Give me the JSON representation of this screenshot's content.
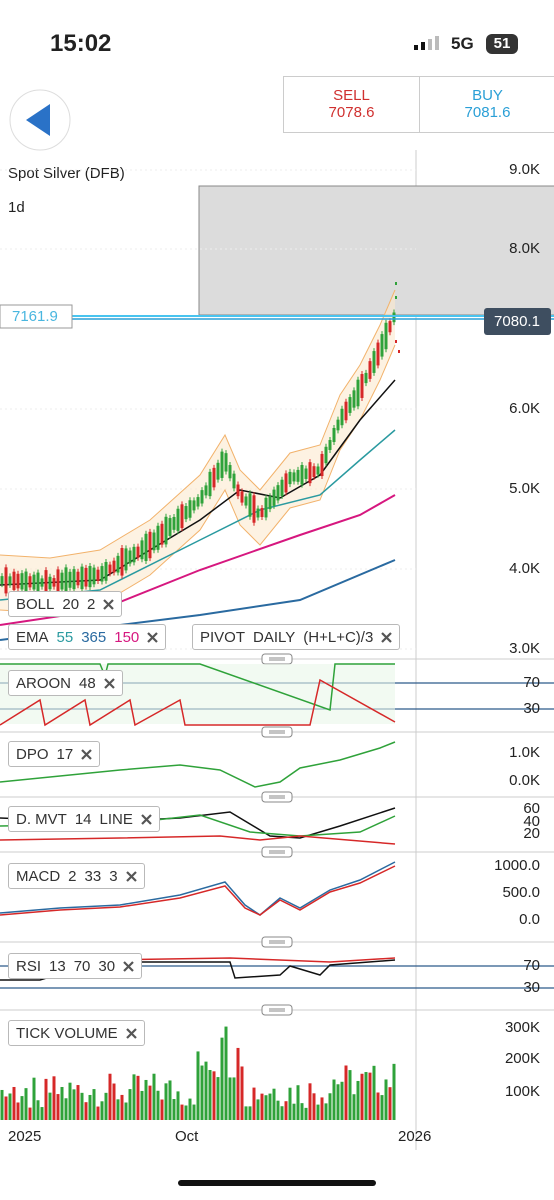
{
  "status_bar": {
    "time": "15:02",
    "network": "5G",
    "battery": "51"
  },
  "quote": {
    "sell_label": "SELL",
    "sell_price": "7078.6",
    "buy_label": "BUY",
    "buy_price": "7081.6"
  },
  "instrument": {
    "name": "Spot Silver (DFB)",
    "timeframe": "1d"
  },
  "price_axis": {
    "ticks": [
      "9.0K",
      "8.0K",
      "6.0K",
      "5.0K",
      "4.0K",
      "3.0K"
    ],
    "current_price": "7080.1",
    "line_label": "7161.9"
  },
  "indicators": [
    {
      "name": "BOLL",
      "params": [
        "20",
        "2"
      ]
    },
    {
      "name": "EMA",
      "params": [
        "55",
        "365",
        "150"
      ]
    },
    {
      "name": "PIVOT",
      "params": [
        "DAILY",
        "(H+L+C)/3"
      ]
    }
  ],
  "panels": [
    {
      "name": "AROON",
      "params": [
        "48"
      ],
      "ticks": [
        "70",
        "30"
      ]
    },
    {
      "name": "DPO",
      "params": [
        "17"
      ],
      "ticks": [
        "1.0K",
        "0.0K"
      ]
    },
    {
      "name": "D. MVT",
      "params": [
        "14",
        "LINE"
      ],
      "ticks": [
        "60",
        "40",
        "20"
      ]
    },
    {
      "name": "MACD",
      "params": [
        "2",
        "33",
        "3"
      ],
      "ticks": [
        "1000.0",
        "500.0",
        "0.0"
      ]
    },
    {
      "name": "RSI",
      "params": [
        "13",
        "70",
        "30"
      ],
      "ticks": [
        "70",
        "30"
      ]
    },
    {
      "name": "TICK VOLUME",
      "params": [],
      "ticks": [
        "300K",
        "200K",
        "100K"
      ]
    }
  ],
  "x_axis": [
    "2025",
    "Oct",
    "2026"
  ]
}
